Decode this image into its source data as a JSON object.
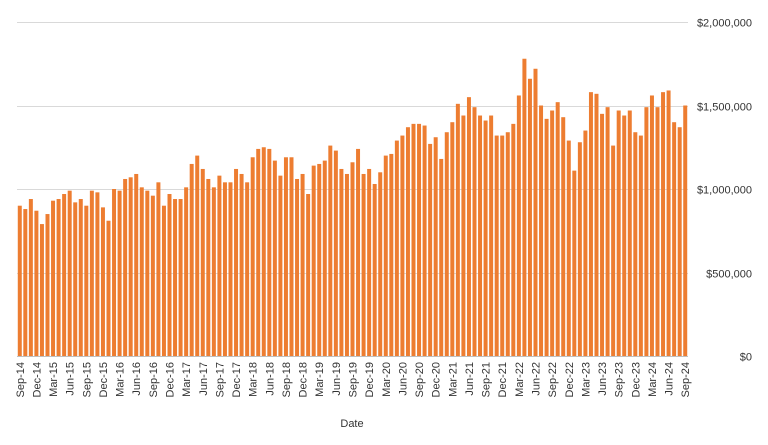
{
  "chart_data": {
    "type": "bar",
    "title": "",
    "xlabel": "Date",
    "ylabel": "",
    "ylim": [
      0,
      2000000
    ],
    "yticks": [
      0,
      500000,
      1000000,
      1500000,
      2000000
    ],
    "ytick_labels": [
      "$0",
      "$500,000",
      "$1,000,000",
      "$1,500,000",
      "$2,000,000"
    ],
    "y_axis_side": "right",
    "grid": true,
    "legend": "none",
    "bar_color": "#ED7D31",
    "x_label_every": 3,
    "categories": [
      "Sep-14",
      "Oct-14",
      "Nov-14",
      "Dec-14",
      "Jan-15",
      "Feb-15",
      "Mar-15",
      "Apr-15",
      "May-15",
      "Jun-15",
      "Jul-15",
      "Aug-15",
      "Sep-15",
      "Oct-15",
      "Nov-15",
      "Dec-15",
      "Jan-16",
      "Feb-16",
      "Mar-16",
      "Apr-16",
      "May-16",
      "Jun-16",
      "Jul-16",
      "Aug-16",
      "Sep-16",
      "Oct-16",
      "Nov-16",
      "Dec-16",
      "Jan-17",
      "Feb-17",
      "Mar-17",
      "Apr-17",
      "May-17",
      "Jun-17",
      "Jul-17",
      "Aug-17",
      "Sep-17",
      "Oct-17",
      "Nov-17",
      "Dec-17",
      "Jan-18",
      "Feb-18",
      "Mar-18",
      "Apr-18",
      "May-18",
      "Jun-18",
      "Jul-18",
      "Aug-18",
      "Sep-18",
      "Oct-18",
      "Nov-18",
      "Dec-18",
      "Jan-19",
      "Feb-19",
      "Mar-19",
      "Apr-19",
      "May-19",
      "Jun-19",
      "Jul-19",
      "Aug-19",
      "Sep-19",
      "Oct-19",
      "Nov-19",
      "Dec-19",
      "Jan-20",
      "Feb-20",
      "Mar-20",
      "Apr-20",
      "May-20",
      "Jun-20",
      "Jul-20",
      "Aug-20",
      "Sep-20",
      "Oct-20",
      "Nov-20",
      "Dec-20",
      "Jan-21",
      "Feb-21",
      "Mar-21",
      "Apr-21",
      "May-21",
      "Jun-21",
      "Jul-21",
      "Aug-21",
      "Sep-21",
      "Oct-21",
      "Nov-21",
      "Dec-21",
      "Jan-22",
      "Feb-22",
      "Mar-22",
      "Apr-22",
      "May-22",
      "Jun-22",
      "Jul-22",
      "Aug-22",
      "Sep-22",
      "Oct-22",
      "Nov-22",
      "Dec-22",
      "Jan-23",
      "Feb-23",
      "Mar-23",
      "Apr-23",
      "May-23",
      "Jun-23",
      "Jul-23",
      "Aug-23",
      "Sep-23",
      "Oct-23",
      "Nov-23",
      "Dec-23",
      "Jan-24",
      "Feb-24",
      "Mar-24",
      "Apr-24",
      "May-24",
      "Jun-24",
      "Jul-24",
      "Aug-24",
      "Sep-24"
    ],
    "values": [
      900000,
      880000,
      940000,
      870000,
      790000,
      850000,
      930000,
      940000,
      970000,
      990000,
      920000,
      940000,
      900000,
      990000,
      980000,
      890000,
      810000,
      1000000,
      990000,
      1060000,
      1070000,
      1090000,
      1010000,
      990000,
      960000,
      1040000,
      900000,
      970000,
      940000,
      940000,
      1010000,
      1150000,
      1200000,
      1120000,
      1060000,
      1010000,
      1080000,
      1040000,
      1040000,
      1120000,
      1090000,
      1040000,
      1190000,
      1240000,
      1250000,
      1240000,
      1170000,
      1080000,
      1190000,
      1190000,
      1060000,
      1090000,
      970000,
      1140000,
      1150000,
      1170000,
      1260000,
      1230000,
      1120000,
      1090000,
      1160000,
      1240000,
      1090000,
      1120000,
      1030000,
      1100000,
      1200000,
      1210000,
      1290000,
      1320000,
      1370000,
      1390000,
      1390000,
      1380000,
      1270000,
      1310000,
      1180000,
      1340000,
      1400000,
      1510000,
      1440000,
      1550000,
      1490000,
      1440000,
      1410000,
      1440000,
      1320000,
      1320000,
      1340000,
      1390000,
      1560000,
      1780000,
      1660000,
      1720000,
      1500000,
      1420000,
      1470000,
      1520000,
      1430000,
      1290000,
      1110000,
      1280000,
      1350000,
      1580000,
      1570000,
      1450000,
      1490000,
      1260000,
      1470000,
      1440000,
      1470000,
      1340000,
      1320000,
      1490000,
      1560000,
      1490000,
      1580000,
      1590000,
      1400000,
      1370000,
      1500000
    ]
  }
}
